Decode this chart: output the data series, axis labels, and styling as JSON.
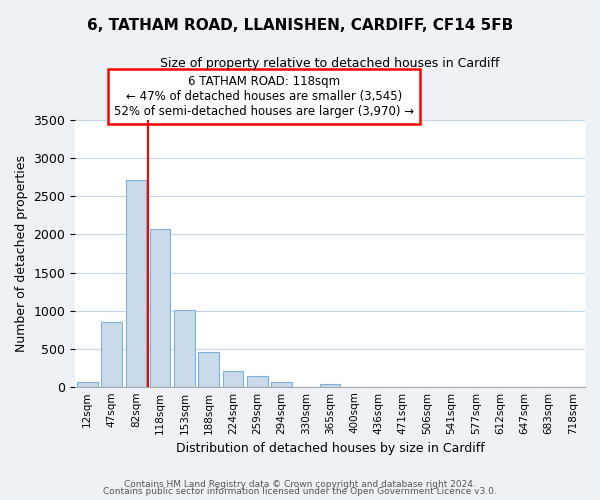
{
  "title_line1": "6, TATHAM ROAD, LLANISHEN, CARDIFF, CF14 5FB",
  "title_line2": "Size of property relative to detached houses in Cardiff",
  "xlabel": "Distribution of detached houses by size in Cardiff",
  "ylabel": "Number of detached properties",
  "bar_labels": [
    "12sqm",
    "47sqm",
    "82sqm",
    "118sqm",
    "153sqm",
    "188sqm",
    "224sqm",
    "259sqm",
    "294sqm",
    "330sqm",
    "365sqm",
    "400sqm",
    "436sqm",
    "471sqm",
    "506sqm",
    "541sqm",
    "577sqm",
    "612sqm",
    "647sqm",
    "683sqm",
    "718sqm"
  ],
  "bar_values": [
    55,
    855,
    2720,
    2070,
    1010,
    450,
    205,
    145,
    60,
    0,
    30,
    0,
    0,
    0,
    0,
    0,
    0,
    0,
    0,
    0,
    0
  ],
  "bar_color": "#c9daea",
  "bar_edge_color": "#7fb3d3",
  "vline_x": 2.5,
  "vline_color": "red",
  "annotation_title": "6 TATHAM ROAD: 118sqm",
  "annotation_line2": "← 47% of detached houses are smaller (3,545)",
  "annotation_line3": "52% of semi-detached houses are larger (3,970) →",
  "annotation_box_color": "white",
  "annotation_box_edgecolor": "red",
  "ylim": [
    0,
    3500
  ],
  "yticks": [
    0,
    500,
    1000,
    1500,
    2000,
    2500,
    3000,
    3500
  ],
  "footer_line1": "Contains HM Land Registry data © Crown copyright and database right 2024.",
  "footer_line2": "Contains public sector information licensed under the Open Government Licence v3.0.",
  "background_color": "#eef2f7",
  "plot_background": "white",
  "grid_color": "#c5d5e8"
}
